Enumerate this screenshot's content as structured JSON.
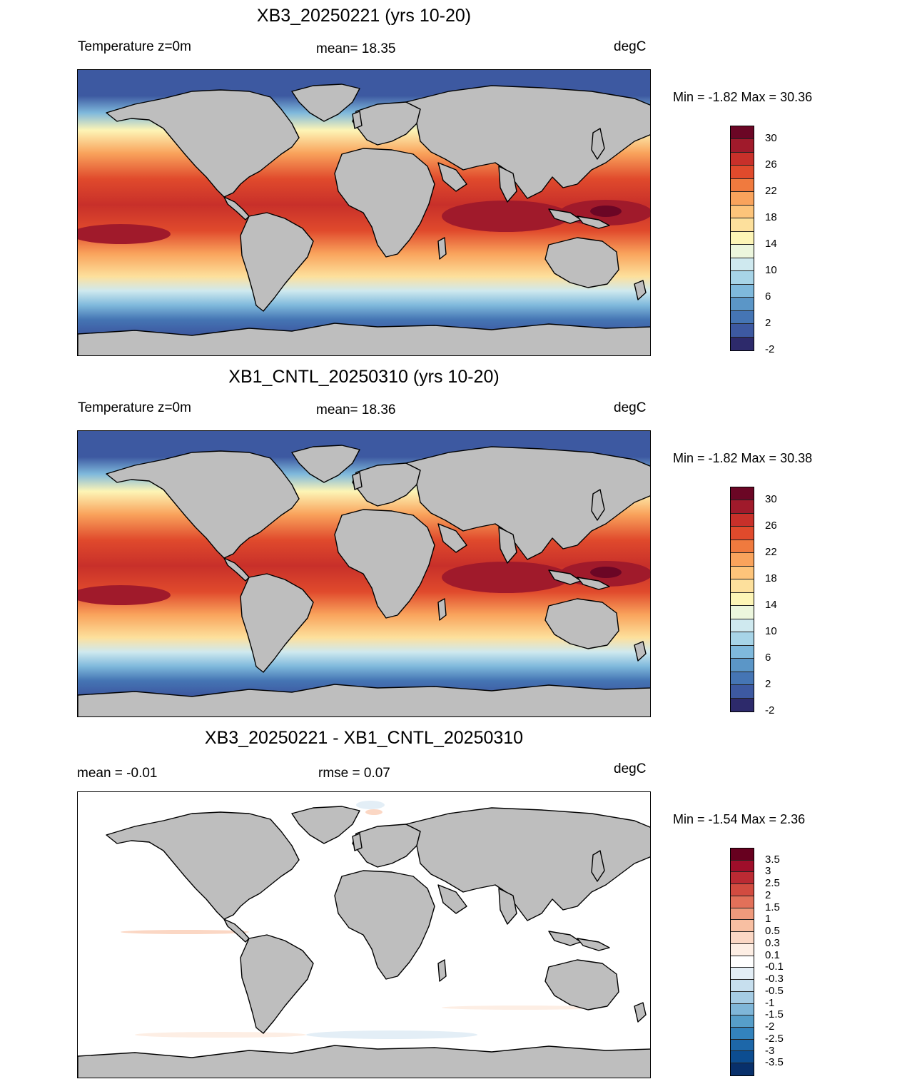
{
  "panels": [
    {
      "title": "XB3_20250221 (yrs 10-20)",
      "left_label": "Temperature z=0m",
      "mid_label": "mean=  18.35",
      "units": "degC",
      "minmax": "Min =  -1.82 Max =  30.36",
      "colorbar": {
        "colors": [
          "#6b0625",
          "#a01a2b",
          "#c8302a",
          "#e04a2c",
          "#f07a3e",
          "#f9a35c",
          "#fdc47a",
          "#fde09c",
          "#fdf5b6",
          "#ecf6dd",
          "#cfe9ef",
          "#a7d4e7",
          "#7fb9dc",
          "#5b96c7",
          "#4575b4",
          "#3d59a1",
          "#2d2a6b"
        ],
        "tick_labels": [
          "30",
          "26",
          "22",
          "18",
          "14",
          "10",
          "6",
          "2",
          "-2"
        ]
      },
      "map_fields": "sst",
      "coastlines": "geographic land mask (grey) with black coastlines"
    },
    {
      "title": "XB1_CNTL_20250310 (yrs 10-20)",
      "left_label": "Temperature z=0m",
      "mid_label": "mean=  18.36",
      "units": "degC",
      "minmax": "Min =  -1.82 Max =  30.38",
      "colorbar": {
        "colors": [
          "#6b0625",
          "#a01a2b",
          "#c8302a",
          "#e04a2c",
          "#f07a3e",
          "#f9a35c",
          "#fdc47a",
          "#fde09c",
          "#fdf5b6",
          "#ecf6dd",
          "#cfe9ef",
          "#a7d4e7",
          "#7fb9dc",
          "#5b96c7",
          "#4575b4",
          "#3d59a1",
          "#2d2a6b"
        ],
        "tick_labels": [
          "30",
          "26",
          "22",
          "18",
          "14",
          "10",
          "6",
          "2",
          "-2"
        ]
      },
      "map_fields": "sst",
      "coastlines": "geographic land mask (grey) with black coastlines"
    },
    {
      "title": "XB3_20250221 - XB1_CNTL_20250310",
      "left_label": "mean =  -0.01",
      "mid_label": "rmse =   0.07",
      "units": "degC",
      "minmax": "Min =  -1.54 Max =   2.36",
      "colorbar": {
        "colors": [
          "#67001f",
          "#9e0e2a",
          "#bb2a33",
          "#d24b40",
          "#e27059",
          "#ef9a7c",
          "#f8bfa2",
          "#fbd7c4",
          "#fdeee4",
          "#ffffff",
          "#e3eef6",
          "#c7dfee",
          "#a5cce4",
          "#7fb6d8",
          "#569ec9",
          "#3383bd",
          "#1d67a9",
          "#0c4d91",
          "#08306b"
        ],
        "tick_labels": [
          "3.5",
          "3",
          "2.5",
          "2",
          "1.5",
          "1",
          "0.5",
          "0.3",
          "0.1",
          "-0.1",
          "-0.3",
          "-0.5",
          "-1",
          "-1.5",
          "-2",
          "-2.5",
          "-3",
          "-3.5"
        ]
      },
      "map_fields": "diff",
      "coastlines": "geographic land mask (grey) with black coastlines"
    }
  ],
  "colors": {
    "land": "#bebebe",
    "coastline": "#000000"
  }
}
